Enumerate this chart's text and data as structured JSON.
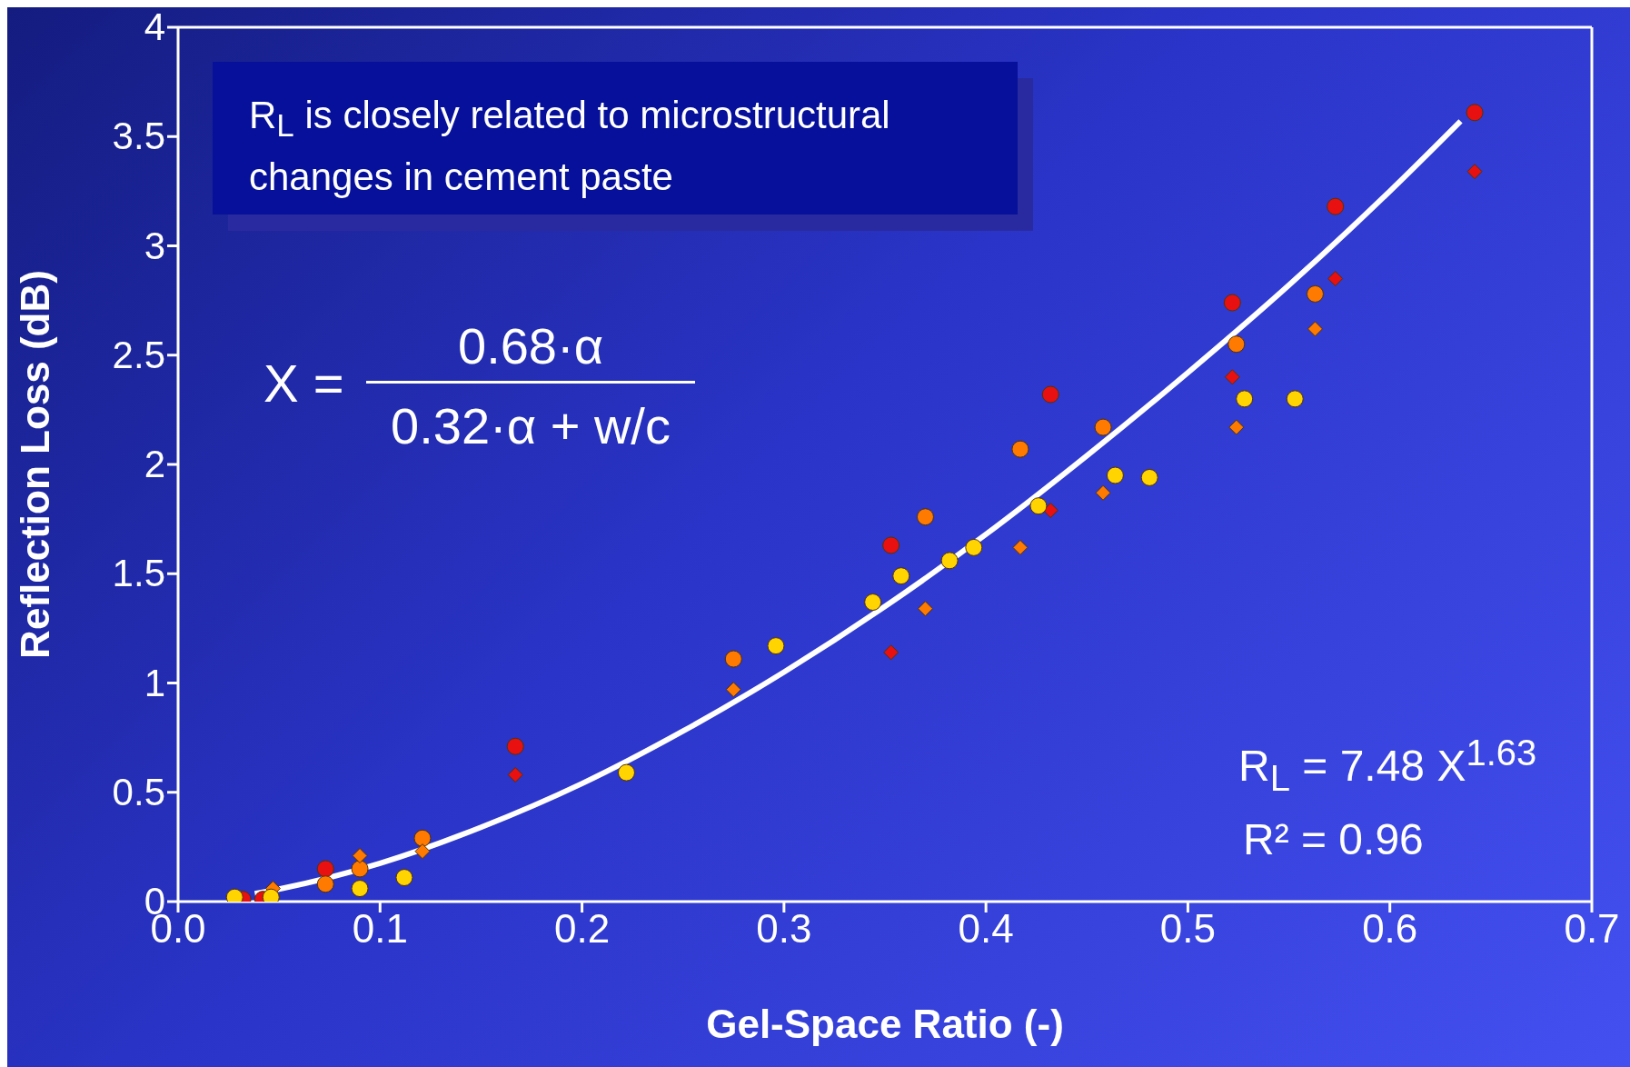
{
  "chart_data": {
    "type": "scatter",
    "xlabel": "Gel-Space Ratio (-)",
    "ylabel": "Reflection Loss (dB)",
    "xlim": [
      0,
      0.7
    ],
    "ylim": [
      0,
      4
    ],
    "xticks": [
      {
        "value": 0,
        "label": "0.0"
      },
      {
        "value": 0.1,
        "label": "0.1"
      },
      {
        "value": 0.2,
        "label": "0.2"
      },
      {
        "value": 0.3,
        "label": "0.3"
      },
      {
        "value": 0.4,
        "label": "0.4"
      },
      {
        "value": 0.5,
        "label": "0.5"
      },
      {
        "value": 0.6,
        "label": "0.6"
      },
      {
        "value": 0.7,
        "label": "0.7"
      }
    ],
    "yticks": [
      0,
      0.5,
      1,
      1.5,
      2,
      2.5,
      3,
      3.5,
      4
    ],
    "grid": false,
    "legend": false,
    "annotations": [
      "R$_{L}$ is closely related to microstructural changes in cement paste",
      "X =",
      "0.68·α",
      "0.32·α + w/c",
      "R$_{L}$ = 7.48 X$^{1.63}$",
      "R² = 0.96"
    ],
    "series": [
      {
        "type": "line",
        "color": "#ffffff",
        "marker": "none",
        "line_style": "solid",
        "x": [
          0.038,
          0.05,
          0.1,
          0.15,
          0.2,
          0.25,
          0.3,
          0.35,
          0.4,
          0.45,
          0.5,
          0.55,
          0.6,
          0.635
        ],
        "values": [
          0.036,
          0.057,
          0.175,
          0.34,
          0.54,
          0.78,
          1.05,
          1.35,
          1.68,
          2.04,
          2.42,
          2.82,
          3.25,
          3.57
        ]
      },
      {
        "color": "#e81010",
        "marker": "circle",
        "x": [
          0.032,
          0.042,
          0.073,
          0.167,
          0.353,
          0.432,
          0.522,
          0.573,
          0.642
        ],
        "values": [
          0.01,
          0.01,
          0.15,
          0.71,
          1.63,
          2.32,
          2.74,
          3.18,
          3.61
        ]
      },
      {
        "color": "#e81010",
        "marker": "diamond",
        "x": [
          0.167,
          0.353,
          0.432,
          0.522,
          0.573,
          0.642
        ],
        "values": [
          0.58,
          1.14,
          1.79,
          2.4,
          2.85,
          3.34
        ]
      },
      {
        "color": "#ff7a00",
        "marker": "circle",
        "x": [
          0.073,
          0.09,
          0.121,
          0.275,
          0.37,
          0.417,
          0.458,
          0.524,
          0.563
        ],
        "values": [
          0.08,
          0.15,
          0.29,
          1.11,
          1.76,
          2.07,
          2.17,
          2.55,
          2.78
        ]
      },
      {
        "color": "#ff7a00",
        "marker": "diamond",
        "x": [
          0.047,
          0.09,
          0.121,
          0.275,
          0.37,
          0.417,
          0.458,
          0.524,
          0.563
        ],
        "values": [
          0.06,
          0.21,
          0.23,
          0.97,
          1.34,
          1.62,
          1.87,
          2.17,
          2.62
        ]
      },
      {
        "color": "#ffd400",
        "marker": "circle",
        "x": [
          0.028,
          0.046,
          0.09,
          0.112,
          0.222,
          0.296,
          0.344,
          0.358,
          0.382,
          0.394,
          0.426,
          0.464,
          0.481,
          0.528,
          0.553
        ],
        "values": [
          0.02,
          0.02,
          0.06,
          0.11,
          0.59,
          1.17,
          1.37,
          1.49,
          1.56,
          1.62,
          1.81,
          1.95,
          1.94,
          2.3,
          2.3
        ]
      }
    ]
  }
}
